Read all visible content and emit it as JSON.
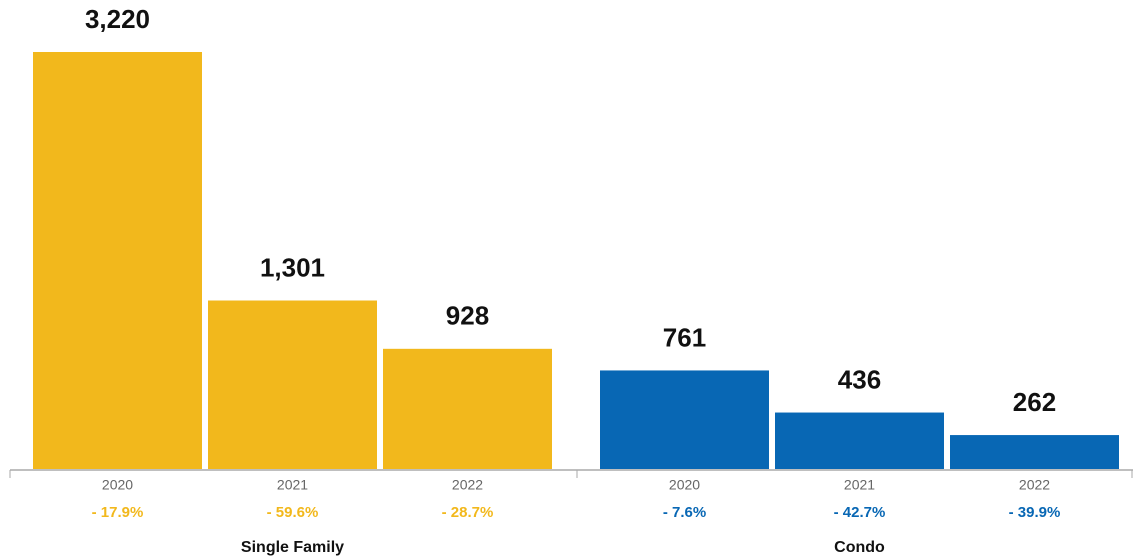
{
  "chart_data": {
    "type": "bar",
    "groups": [
      {
        "name": "Single Family",
        "color": "#f2b81c",
        "categories": [
          "2020",
          "2021",
          "2022"
        ],
        "values": [
          3220,
          1301,
          928
        ],
        "value_labels": [
          "3,220",
          "1,301",
          "928"
        ],
        "changes": [
          -17.9,
          -59.6,
          -28.7
        ],
        "change_labels": [
          "- 17.9%",
          "- 59.6%",
          "- 28.7%"
        ]
      },
      {
        "name": "Condo",
        "color": "#0867b4",
        "categories": [
          "2020",
          "2021",
          "2022"
        ],
        "values": [
          761,
          436,
          262
        ],
        "value_labels": [
          "761",
          "436",
          "262"
        ],
        "changes": [
          -7.6,
          -42.7,
          -39.9
        ],
        "change_labels": [
          "- 7.6%",
          "- 42.7%",
          "- 39.9%"
        ]
      }
    ]
  }
}
